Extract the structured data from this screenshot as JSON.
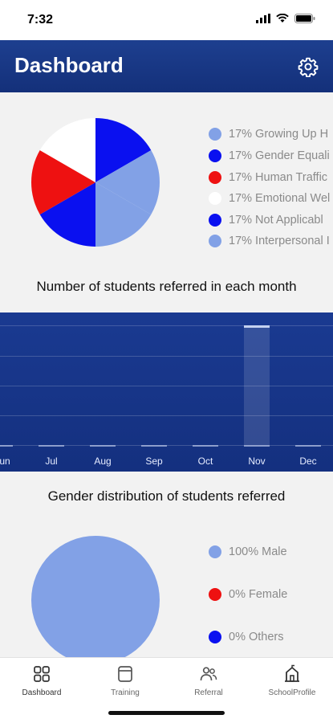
{
  "status_bar": {
    "time": "7:32"
  },
  "header": {
    "title": "Dashboard"
  },
  "issues_pie": {
    "legend": [
      {
        "label": "17% Growing Up H",
        "color": "#82a1e6"
      },
      {
        "label": "17% Gender Equali",
        "color": "#0a10f0"
      },
      {
        "label": "17% Human Traffic",
        "color": "#ee1111"
      },
      {
        "label": "17% Emotional Wel",
        "color": "#ffffff"
      },
      {
        "label": "17% Not Applicabl",
        "color": "#0a10f0"
      },
      {
        "label": "17% Interpersonal I",
        "color": "#82a1e6"
      }
    ]
  },
  "monthly_chart": {
    "title": "Number of students referred in each month",
    "months": [
      "Jun",
      "Jul",
      "Aug",
      "Sep",
      "Oct",
      "Nov",
      "Dec"
    ]
  },
  "gender_pie": {
    "title": "Gender distribution of students referred",
    "legend": [
      {
        "label": "100% Male",
        "color": "#82a1e6"
      },
      {
        "label": "0% Female",
        "color": "#ee1111"
      },
      {
        "label": "0% Others",
        "color": "#0a10f0"
      }
    ]
  },
  "chart_data": [
    {
      "type": "pie",
      "labels": [
        "Growing Up H",
        "Gender Equali",
        "Human Traffic",
        "Emotional Wel",
        "Not Applicabl",
        "Interpersonal I"
      ],
      "values": [
        17,
        17,
        17,
        17,
        17,
        17
      ],
      "colors": [
        "#82a1e6",
        "#0a10f0",
        "#ee1111",
        "#ffffff",
        "#0a10f0",
        "#82a1e6"
      ]
    },
    {
      "type": "bar",
      "title": "Number of students referred in each month",
      "categories": [
        "Jun",
        "Jul",
        "Aug",
        "Sep",
        "Oct",
        "Nov",
        "Dec"
      ],
      "values": [
        0,
        0,
        0,
        0,
        0,
        1,
        0
      ]
    },
    {
      "type": "pie",
      "title": "Gender distribution of students referred",
      "labels": [
        "Male",
        "Female",
        "Others"
      ],
      "values": [
        100,
        0,
        0
      ],
      "colors": [
        "#82a1e6",
        "#ee1111",
        "#0a10f0"
      ]
    }
  ],
  "bottom_nav": {
    "items": [
      {
        "label": "Dashboard"
      },
      {
        "label": "Training"
      },
      {
        "label": "Referral"
      },
      {
        "label": "SchoolProfile"
      }
    ]
  }
}
